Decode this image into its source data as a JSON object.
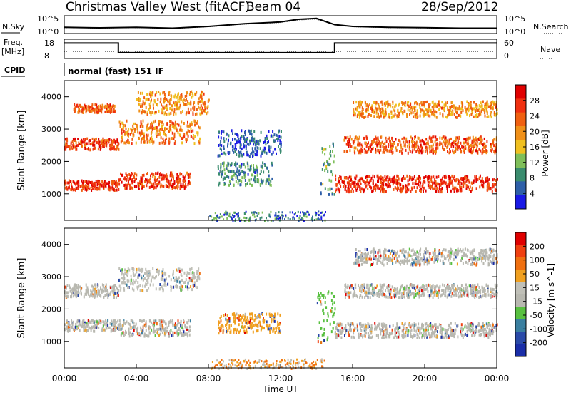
{
  "header": {
    "title": "Christmas Valley West (fitACF)",
    "beam": "Beam 04",
    "date": "28/Sep/2012"
  },
  "strip_labels": {
    "nsky": "N.Sky",
    "nsearch": "N.Search",
    "freq": "Freq.",
    "freq_unit": "[MHz]",
    "nave": "Nave",
    "cpid": "CPID",
    "mode": "normal (fast) 151 IF"
  },
  "noise_axis": {
    "left_ticks": [
      "10^5",
      "10^0"
    ],
    "right_ticks": [
      "10^5",
      "10^0"
    ]
  },
  "freq_axis": {
    "left_ticks": [
      "18",
      "8"
    ],
    "right_ticks": [
      "60",
      "0"
    ]
  },
  "colors": {
    "power_scale": [
      "#1a1ae6",
      "#2e5fa8",
      "#3a8c6e",
      "#7fbf5a",
      "#f0c020",
      "#f09018",
      "#f06010",
      "#f03010",
      "#e00000"
    ],
    "velocity_scale": [
      "#1a2ea8",
      "#2a4aa8",
      "#3a7fa0",
      "#58c040",
      "#b8b8b0",
      "#c0c0b8",
      "#f0a020",
      "#f07010",
      "#f04010",
      "#e00000"
    ]
  },
  "chart_data": [
    {
      "type": "heatmap",
      "name": "power-panel",
      "xlabel": "",
      "ylabel": "Slant Range [km]",
      "xlim": [
        0,
        24
      ],
      "ylim": [
        180,
        4500
      ],
      "y_ticks": [
        "4000",
        "3000",
        "2000",
        "1000"
      ],
      "colorbar": {
        "label": "Power [dB]",
        "ticks": [
          "28",
          "24",
          "20",
          "16",
          "12",
          "8",
          "4"
        ]
      },
      "bands": [
        {
          "t": [
            0.0,
            3.0
          ],
          "r": [
            1150,
            1450
          ],
          "level": 0.95
        },
        {
          "t": [
            0.0,
            3.0
          ],
          "r": [
            2400,
            2750
          ],
          "level": 0.9
        },
        {
          "t": [
            0.5,
            2.8
          ],
          "r": [
            3550,
            3800
          ],
          "level": 0.85
        },
        {
          "t": [
            3.0,
            7.0
          ],
          "r": [
            1200,
            1700
          ],
          "level": 0.92
        },
        {
          "t": [
            3.0,
            7.5
          ],
          "r": [
            2600,
            3300
          ],
          "level": 0.75
        },
        {
          "t": [
            4.0,
            8.0
          ],
          "r": [
            3500,
            4200
          ],
          "level": 0.7
        },
        {
          "t": [
            8.5,
            11.5
          ],
          "r": [
            1300,
            2000
          ],
          "level": 0.3
        },
        {
          "t": [
            8.5,
            12.0
          ],
          "r": [
            2200,
            3000
          ],
          "level": 0.15
        },
        {
          "t": [
            15.0,
            24.0
          ],
          "r": [
            1100,
            1600
          ],
          "level": 0.95
        },
        {
          "t": [
            15.5,
            24.0
          ],
          "r": [
            2300,
            2800
          ],
          "level": 0.85
        },
        {
          "t": [
            16.0,
            24.0
          ],
          "r": [
            3400,
            3900
          ],
          "level": 0.7
        },
        {
          "t": [
            14.2,
            15.0
          ],
          "r": [
            1000,
            2600
          ],
          "level": 0.35
        }
      ]
    },
    {
      "type": "heatmap",
      "name": "velocity-panel",
      "xlabel": "Time UT",
      "ylabel": "Slant Range [km]",
      "xlim": [
        0,
        24
      ],
      "ylim": [
        180,
        4500
      ],
      "x_ticks": [
        "00:00",
        "04:00",
        "08:00",
        "12:00",
        "16:00",
        "20:00",
        "00:00"
      ],
      "y_ticks": [
        "4000",
        "3000",
        "2000",
        "1000"
      ],
      "colorbar": {
        "label": "Velocity [m s^-1]",
        "ticks": [
          "200",
          "100",
          "50",
          "15",
          "-15",
          "-50",
          "-100",
          "-200"
        ]
      },
      "bands": [
        {
          "t": [
            0.0,
            3.0
          ],
          "r": [
            1350,
            1700
          ],
          "level": 0.45
        },
        {
          "t": [
            0.0,
            3.0
          ],
          "r": [
            2400,
            2800
          ],
          "level": 0.45
        },
        {
          "t": [
            3.0,
            7.0
          ],
          "r": [
            1200,
            1700
          ],
          "level": 0.45
        },
        {
          "t": [
            3.0,
            7.5
          ],
          "r": [
            2600,
            3300
          ],
          "level": 0.6
        },
        {
          "t": [
            8.5,
            12.0
          ],
          "r": [
            1300,
            1900
          ],
          "level": 0.65
        },
        {
          "t": [
            14.0,
            15.0
          ],
          "r": [
            1000,
            2600
          ],
          "level": 0.35
        },
        {
          "t": [
            15.0,
            24.0
          ],
          "r": [
            1150,
            1600
          ],
          "level": 0.45
        },
        {
          "t": [
            15.5,
            24.0
          ],
          "r": [
            2400,
            2800
          ],
          "level": 0.45
        },
        {
          "t": [
            16.0,
            24.0
          ],
          "r": [
            3400,
            3900
          ],
          "level": 0.45
        }
      ]
    },
    {
      "type": "line",
      "name": "noise-strip",
      "x": [
        0,
        2,
        4,
        6,
        8,
        10,
        12,
        13,
        14,
        15,
        16,
        18,
        20,
        22,
        24
      ],
      "y_rel": [
        0.35,
        0.32,
        0.35,
        0.3,
        0.4,
        0.55,
        0.65,
        0.8,
        0.85,
        0.5,
        0.4,
        0.35,
        0.33,
        0.3,
        0.3
      ]
    },
    {
      "type": "line",
      "name": "frequency-strip",
      "x": [
        0,
        3.0,
        3.0,
        15.0,
        15.0,
        24
      ],
      "y_mhz": [
        16,
        16,
        11,
        11,
        16,
        16
      ]
    }
  ]
}
